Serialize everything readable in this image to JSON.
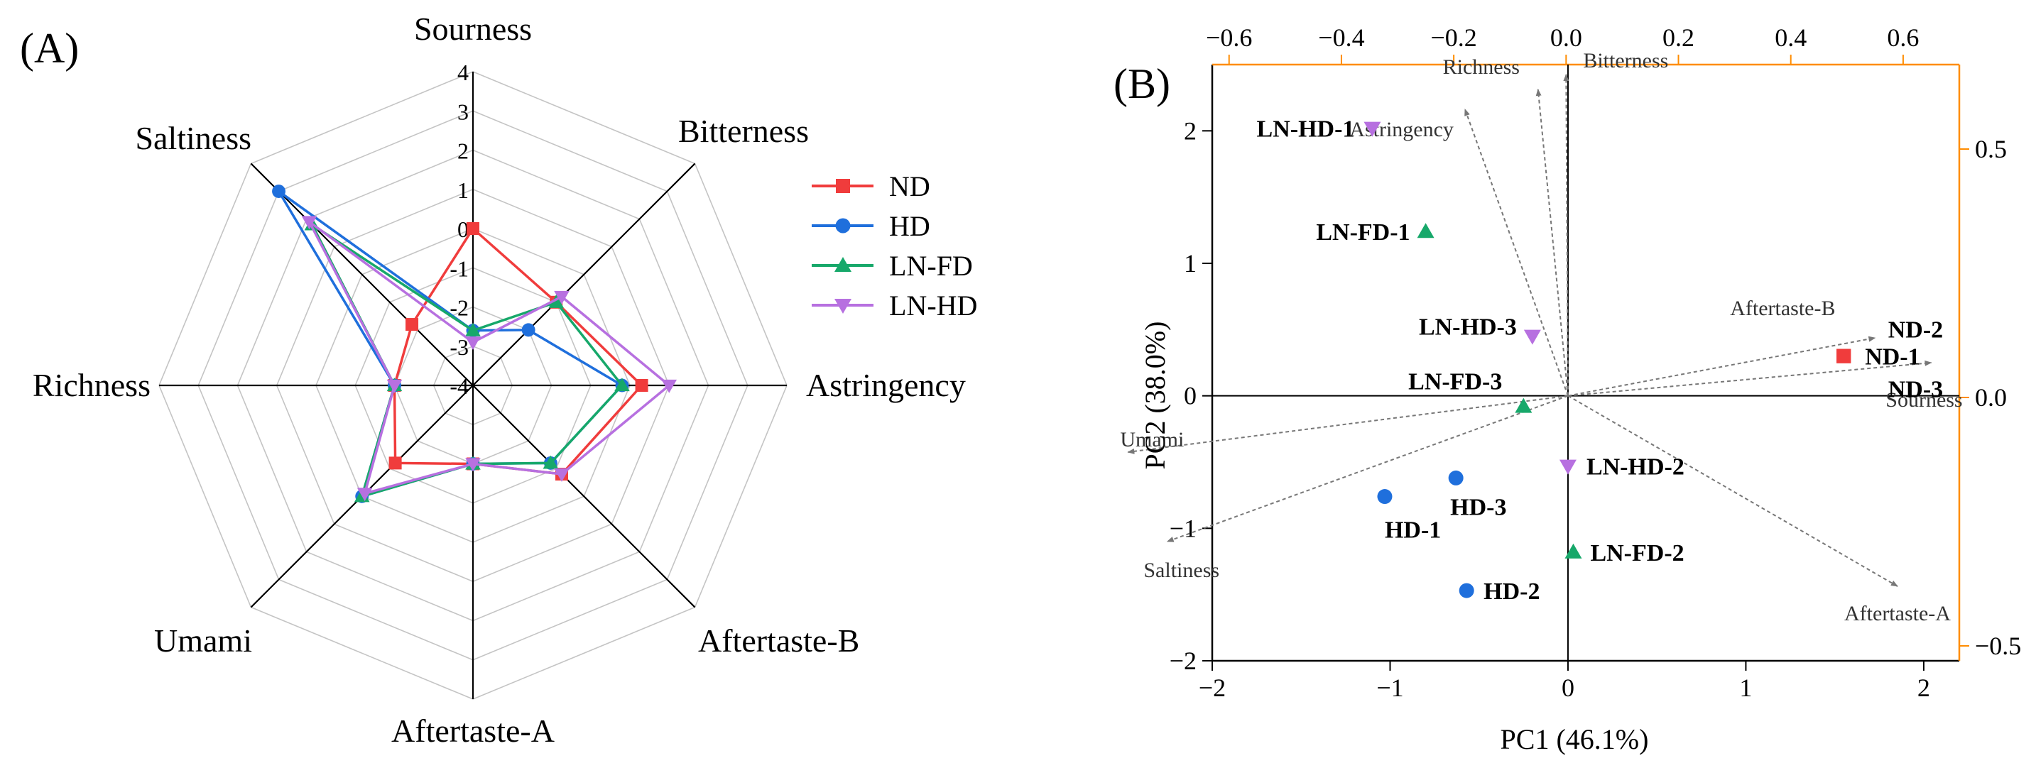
{
  "panel_a": {
    "label": "(A)",
    "chart_data": {
      "type": "radar",
      "axes": [
        "Sourness",
        "Bitterness",
        "Astringency",
        "Aftertaste-B",
        "Aftertaste-A",
        "Umami",
        "Richness",
        "Saltiness"
      ],
      "scale_min": -4,
      "scale_max": 4,
      "ticks": [
        "-4",
        "-3",
        "-2",
        "-1",
        "0",
        "1",
        "2",
        "3",
        "4"
      ],
      "series": [
        {
          "name": "ND",
          "color": "#f03c3c",
          "marker": "square",
          "values": [
            0,
            -1,
            0.3,
            -0.8,
            -2,
            -1.2,
            -2,
            -1.8
          ]
        },
        {
          "name": "HD",
          "color": "#1f6fdc",
          "marker": "circle",
          "values": [
            -2.6,
            -2,
            -0.2,
            -1.2,
            -2,
            0,
            -2,
            3
          ]
        },
        {
          "name": "LN-FD",
          "color": "#17a86a",
          "marker": "triangle-up",
          "values": [
            -2.6,
            -1,
            -0.2,
            -1.2,
            -2,
            0,
            -2,
            1.8
          ]
        },
        {
          "name": "LN-HD",
          "color": "#b770e0",
          "marker": "triangle-down",
          "values": [
            -2.9,
            -0.8,
            1,
            -0.8,
            -2,
            -0.1,
            -2,
            1.9
          ]
        }
      ]
    }
  },
  "panel_b": {
    "label": "(B)",
    "chart_data": {
      "type": "scatter",
      "xlabel": "PC1 (46.1%)",
      "ylabel": "PC2 (38.0%)",
      "xlim": [
        -2,
        2.2
      ],
      "ylim": [
        -2,
        2.5
      ],
      "x_ticks": [
        "−2",
        "−1",
        "0",
        "1",
        "2"
      ],
      "y_ticks": [
        "−2",
        "−1",
        "0",
        "1",
        "2"
      ],
      "top_xlim": [
        -0.63,
        0.7
      ],
      "top_ticks": [
        "−0.6",
        "−0.4",
        "−0.2",
        "0.0",
        "0.2",
        "0.4",
        "0.6"
      ],
      "right_ylim": [
        -0.53,
        0.67
      ],
      "right_ticks": [
        "−0.5",
        "0.0",
        "0.5"
      ],
      "secondary_axis_color": "#ff8c00",
      "points": [
        {
          "label": "LN-HD-1",
          "x": -1.1,
          "y": 2.02,
          "group": "LN-HD",
          "color": "#b770e0",
          "marker": "triangle-down"
        },
        {
          "label": "LN-FD-1",
          "x": -0.8,
          "y": 1.24,
          "group": "LN-FD",
          "color": "#17a86a",
          "marker": "triangle-up"
        },
        {
          "label": "LN-HD-3",
          "x": -0.2,
          "y": 0.45,
          "group": "LN-HD",
          "color": "#b770e0",
          "marker": "triangle-down"
        },
        {
          "label": "LN-FD-3",
          "x": -0.25,
          "y": -0.08,
          "group": "LN-FD",
          "color": "#17a86a",
          "marker": "triangle-up"
        },
        {
          "label": "ND-2",
          "x": 1.55,
          "y": 0.3,
          "group": "ND",
          "color": "#f03c3c",
          "marker": "square"
        },
        {
          "label": "ND-1",
          "x": 1.55,
          "y": 0.3,
          "group": "ND",
          "color": "#f03c3c",
          "marker": "square"
        },
        {
          "label": "ND-3",
          "x": 1.55,
          "y": 0.3,
          "group": "ND",
          "color": "#f03c3c",
          "marker": "square"
        },
        {
          "label": "LN-HD-2",
          "x": 0.0,
          "y": -0.53,
          "group": "LN-HD",
          "color": "#b770e0",
          "marker": "triangle-down"
        },
        {
          "label": "HD-3",
          "x": -0.63,
          "y": -0.62,
          "group": "HD",
          "color": "#1f6fdc",
          "marker": "circle"
        },
        {
          "label": "HD-1",
          "x": -1.03,
          "y": -0.76,
          "group": "HD",
          "color": "#1f6fdc",
          "marker": "circle"
        },
        {
          "label": "LN-FD-2",
          "x": 0.03,
          "y": -1.18,
          "group": "LN-FD",
          "color": "#17a86a",
          "marker": "triangle-up"
        },
        {
          "label": "HD-2",
          "x": -0.57,
          "y": -1.47,
          "group": "HD",
          "color": "#1f6fdc",
          "marker": "circle"
        }
      ],
      "loadings": [
        {
          "label": "Richness",
          "x": -0.05,
          "y": 0.62
        },
        {
          "label": "Bitterness",
          "x": 0.0,
          "y": 0.65
        },
        {
          "label": "Astringency",
          "x": -0.18,
          "y": 0.58
        },
        {
          "label": "Aftertaste-B",
          "x": 0.55,
          "y": 0.12
        },
        {
          "label": "Sourness",
          "x": 0.65,
          "y": 0.07
        },
        {
          "label": "Aftertaste-A",
          "x": 0.59,
          "y": -0.38
        },
        {
          "label": "Umami",
          "x": -0.78,
          "y": -0.11
        },
        {
          "label": "Saltiness",
          "x": -0.71,
          "y": -0.29
        }
      ]
    }
  }
}
